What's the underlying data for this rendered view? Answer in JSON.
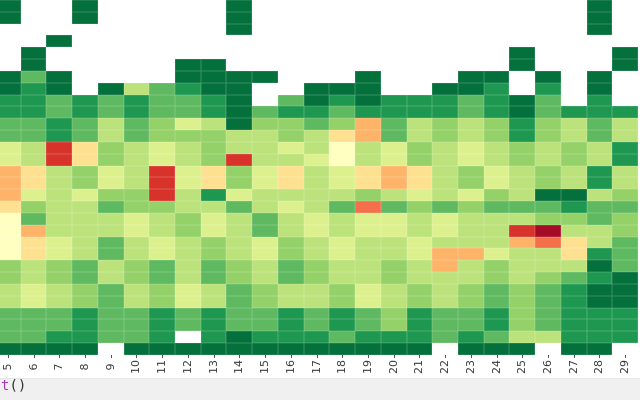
{
  "chart_data": {
    "type": "heatmap",
    "title": "",
    "xlabel": "",
    "ylabel": "",
    "x_tick_labels": [
      "5",
      "6",
      "7",
      "8",
      "9",
      "10",
      "11",
      "12",
      "13",
      "14",
      "15",
      "16",
      "17",
      "18",
      "19",
      "20",
      "21",
      "22",
      "23",
      "24",
      "25",
      "26",
      "27",
      "28",
      "29"
    ],
    "y_tick_labels": [],
    "n_cols": 25,
    "n_rows": 30,
    "legend": "none visible (colorbar cropped out)",
    "colormap_style": "RdYlGn, white = missing value",
    "palette": {
      "A": "#04703b",
      "B": "#1e9850",
      "C": "#5fb961",
      "D": "#94d168",
      "E": "#bce27c",
      "F": "#dcf08e",
      "H": "#feffc0",
      "I": "#fee091",
      "J": "#fdb469",
      "K": "#f4704a",
      "L": "#d7332b",
      "M": "#a60b26"
    },
    "missing_color": "#ffffff",
    "rows": [
      "A..A.....A.............A.",
      "A..A.....A.............A.",
      ".........A.............A.",
      "..A......................",
      ".A..................A...A",
      ".A.....AA...........A...A",
      "ACA....AAAA...A...AA.A.A.",
      "ABA.AECBAA..AAA..AAB.B.A.",
      "BBCBCBCCBA.CABABBBCBAC.B.",
      "BBCBCBCCBACBBCBBBBCBACBBB",
      "CCBCECDFEADDCDJCEDEDBDECE",
      "CCBCECDDDEEDEIJCEDEDBDECE",
      "FELIDEFEDEEFEHEFDEFEDEDEB",
      "FELIDEFEDLEEFHEFDEFEDEDEB",
      "JIEDFELFIDFIEFIJIEDFEDEBE",
      "JIEDFELFIDFIEFIJIEDFEDEBE",
      "JFEFDDLEBFEEEEDEFEFDEAAED",
      "IDEECDDEECEFECKCDCDCCCBCC",
      "HCEEEFEDFECEFEFFEFEEEDDCD",
      "HJEEEFEDFECEFEFFEFEELMEED",
      "HIFECEFEDEFDEFEEFEEEJKIEC",
      "HIFECEFEDEFDEFEEFJJFEEIBC",
      "DEDCEDCECDECDEEDEJEDEEEAC",
      "DEDCEDCECDECDEEDEEEDEDCBA",
      "EFEDCEDFECDEEDFEDEDCDCBAA",
      "EFEDCEDFECDEEDFEDEDCDCBAA",
      "CCCBCCBCBCCBCBCDBCCBDCBBB",
      "CCCBCCBCBCCBCBCDBCCBDCBBB",
      "CCBBCCB.BABBBCBBBCBCEEBBB",
      "AAAA.AAAAAAAAAAAA.AAA.AA."
    ]
  },
  "axis": {
    "tick_color": "#3d3d3d",
    "tick_font_size_px": 11
  },
  "code_cell": {
    "fn": "t",
    "parens": "()",
    "fn_color": "#a23db6",
    "background": "#f0f0f1"
  },
  "layout_colors": {
    "figure_background": "#ffffff"
  }
}
